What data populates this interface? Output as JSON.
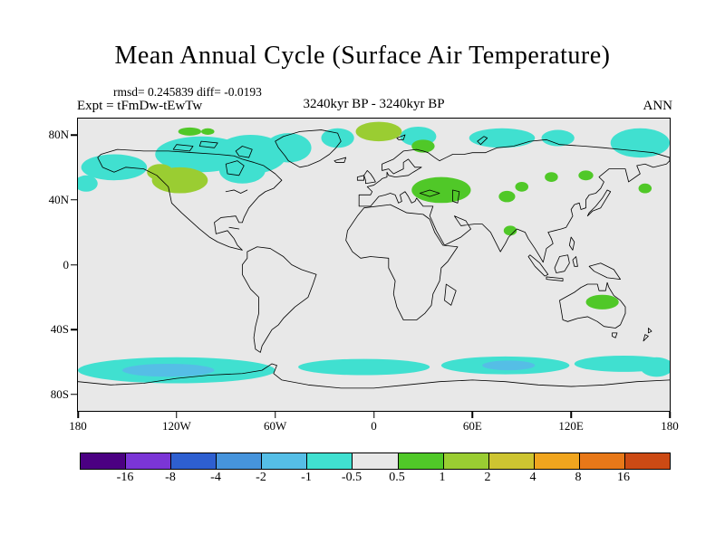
{
  "title": "Mean Annual Cycle (Surface Air Temperature)",
  "stats_line": "rmsd= 0.245839 diff= -0.0193",
  "header": {
    "expt_label": "Expt = tFmDw-tEwTw",
    "period_label": "3240kyr BP - 3240kyr BP",
    "season_label": "ANN"
  },
  "map": {
    "yticks": [
      "80N",
      "40N",
      "0",
      "40S",
      "80S"
    ],
    "xticks": [
      "180",
      "120W",
      "60W",
      "0",
      "60E",
      "120E",
      "180"
    ]
  },
  "colors": {
    "neutral": "#E8E8E8",
    "cyan": "#40E0D0",
    "light_blue": "#55BEE6",
    "green": "#50C828",
    "yellow_green": "#9ACD32"
  },
  "colorbar": {
    "boundary_labels": [
      "-16",
      "-8",
      "-4",
      "-2",
      "-1",
      "-0.5",
      "0.5",
      "1",
      "2",
      "4",
      "8",
      "16"
    ],
    "segment_colors": [
      "#4B0082",
      "#7B35D6",
      "#2E5FD0",
      "#4694DC",
      "#55BEE6",
      "#40E0D0",
      "#E8E8E8",
      "#50C828",
      "#9ACD32",
      "#CDC431",
      "#F0A51E",
      "#E87818",
      "#CC4A14"
    ]
  },
  "chart_data": {
    "type": "heatmap",
    "title": "Mean Annual Cycle (Surface Air Temperature)",
    "subtitle": "3240kyr BP - 3240kyr BP",
    "experiment": "tFmDw-tEwTw",
    "season": "ANN",
    "rmsd": 0.245839,
    "diff": -0.0193,
    "projection": "equirectangular world map",
    "contour_levels": [
      -16,
      -8,
      -4,
      -2,
      -1,
      -0.5,
      0.5,
      1,
      2,
      4,
      8,
      16
    ],
    "x_axis": {
      "label": "longitude",
      "ticks": [
        "180",
        "120W",
        "60W",
        "0",
        "60E",
        "120E",
        "180"
      ],
      "range": [
        -180,
        180
      ]
    },
    "y_axis": {
      "label": "latitude",
      "ticks": [
        "80N",
        "40N",
        "0",
        "40S",
        "80S"
      ],
      "range": [
        -90,
        90
      ]
    },
    "legend_position": "bottom",
    "anomaly_regions": [
      {
        "region": "Canadian Arctic, Hudson Bay and Greenland",
        "value_range": "-1 to -0.5"
      },
      {
        "region": "Southern Alaska / Bering Sea",
        "value_range": "-1 to -0.5"
      },
      {
        "region": "Greenland Sea flanks",
        "value_range": "-1 to -0.5"
      },
      {
        "region": "Northern Siberia coast",
        "value_range": "-1 to -0.5"
      },
      {
        "region": "Chukotka / East Siberian Sea",
        "value_range": "-1 to -0.5"
      },
      {
        "region": "Southern Ocean circumpolar band",
        "value_range": "-2 to -0.5"
      },
      {
        "region": "Western North America (BC/Prairies)",
        "value_range": "0.5 to 2"
      },
      {
        "region": "Svalbard / Barents Sea",
        "value_range": "1 to 2"
      },
      {
        "region": "Eastern Europe / Western Russia",
        "value_range": "0.5 to 1"
      },
      {
        "region": "Scattered central and east Asia spots",
        "value_range": "0.5 to 1"
      },
      {
        "region": "Northern India spot",
        "value_range": "0.5 to 1"
      },
      {
        "region": "Eastern Australia",
        "value_range": "0.5 to 1"
      },
      {
        "region": "Everywhere else",
        "value_range": "-0.5 to 0.5"
      }
    ]
  }
}
